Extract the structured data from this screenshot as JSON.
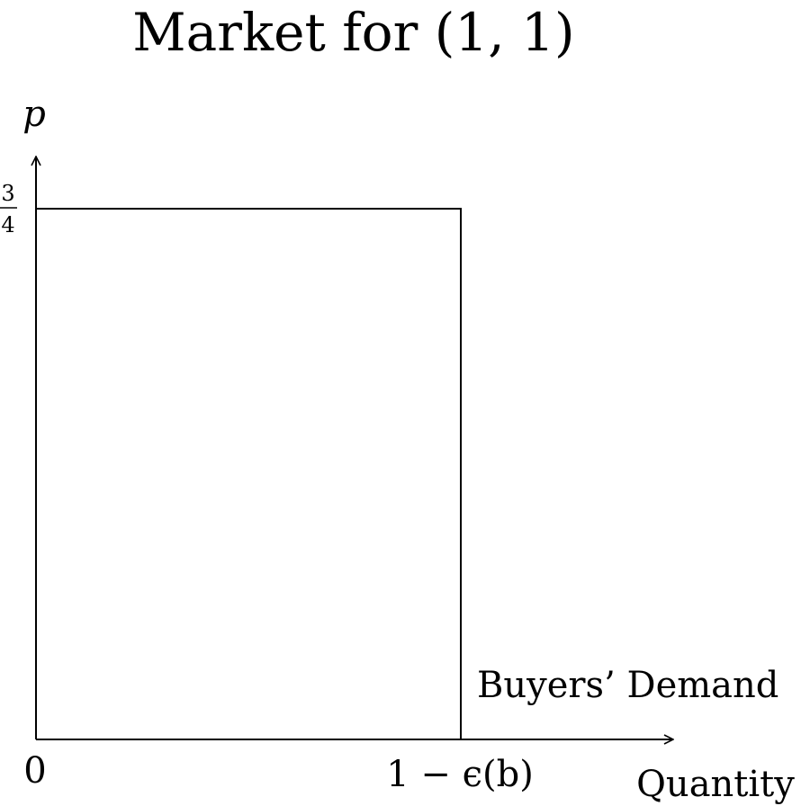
{
  "title": "Market for (1, 1)",
  "y_axis_label": "p",
  "x_axis_label": "Quantity",
  "origin_label": "0",
  "x_tick_label": "1 − ϵ(b)",
  "y_tick_label": {
    "numerator": "3",
    "denominator": "4"
  },
  "curve_label": "Buyers’ Demand",
  "chart_data": {
    "type": "line",
    "title": "Market for (1, 1)",
    "xlabel": "Quantity",
    "ylabel": "p",
    "series": [
      {
        "name": "Buyers’ Demand",
        "x": [
          "0",
          "1 − ϵ(b)",
          "1 − ϵ(b)"
        ],
        "y": [
          0.75,
          0.75,
          0
        ]
      }
    ],
    "y_ticks": [
      "3/4"
    ],
    "x_ticks": [
      "0",
      "1 − ϵ(b)"
    ],
    "grid": false
  }
}
